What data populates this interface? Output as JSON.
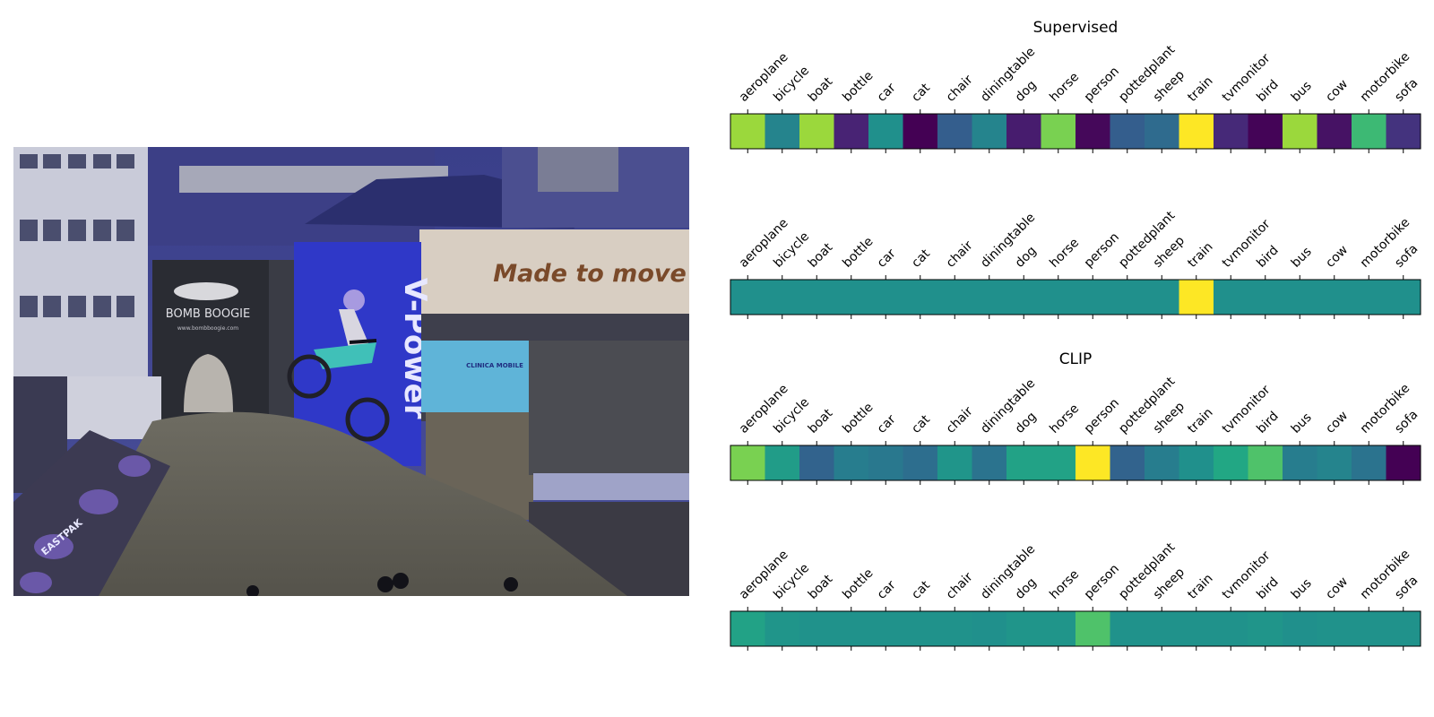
{
  "photo": {
    "description_icon": "motocross-photo",
    "signs": {
      "made_to_move": "Made to move",
      "bomb_boogie": "BOMB BOOGIE",
      "bomb_boogie_url": "www.bombboogie.com",
      "vpower": "V-Power",
      "clinica": "CLINICA MOBILE",
      "eastpak": "EASTPAK"
    }
  },
  "chart_data": [
    {
      "type": "heatmap",
      "title": "Supervised",
      "categories": [
        "aeroplane",
        "bicycle",
        "boat",
        "bottle",
        "car",
        "cat",
        "chair",
        "diningtable",
        "dog",
        "horse",
        "person",
        "pottedplant",
        "sheep",
        "train",
        "tvmonitor",
        "bird",
        "bus",
        "cow",
        "motorbike",
        "sofa"
      ],
      "values": [
        0.85,
        0.45,
        0.85,
        0.1,
        0.5,
        0.0,
        0.3,
        0.45,
        0.08,
        0.8,
        0.02,
        0.3,
        0.35,
        1.0,
        0.12,
        0.01,
        0.85,
        0.05,
        0.68,
        0.15
      ]
    },
    {
      "type": "heatmap",
      "title": "",
      "categories": [
        "aeroplane",
        "bicycle",
        "boat",
        "bottle",
        "car",
        "cat",
        "chair",
        "diningtable",
        "dog",
        "horse",
        "person",
        "pottedplant",
        "sheep",
        "train",
        "tvmonitor",
        "bird",
        "bus",
        "cow",
        "motorbike",
        "sofa"
      ],
      "values": [
        0.5,
        0.5,
        0.5,
        0.5,
        0.5,
        0.5,
        0.5,
        0.5,
        0.5,
        0.5,
        0.5,
        0.5,
        0.5,
        1.0,
        0.5,
        0.5,
        0.5,
        0.5,
        0.5,
        0.5
      ]
    },
    {
      "type": "heatmap",
      "title": "CLIP",
      "categories": [
        "aeroplane",
        "bicycle",
        "boat",
        "bottle",
        "car",
        "cat",
        "chair",
        "diningtable",
        "dog",
        "horse",
        "person",
        "pottedplant",
        "sheep",
        "train",
        "tvmonitor",
        "bird",
        "bus",
        "cow",
        "motorbike",
        "sofa"
      ],
      "values": [
        0.8,
        0.55,
        0.32,
        0.42,
        0.4,
        0.36,
        0.52,
        0.38,
        0.58,
        0.58,
        1.0,
        0.32,
        0.42,
        0.5,
        0.6,
        0.72,
        0.42,
        0.45,
        0.38,
        0.0
      ]
    },
    {
      "type": "heatmap",
      "title": "",
      "categories": [
        "aeroplane",
        "bicycle",
        "boat",
        "bottle",
        "car",
        "cat",
        "chair",
        "diningtable",
        "dog",
        "horse",
        "person",
        "pottedplant",
        "sheep",
        "train",
        "tvmonitor",
        "bird",
        "bus",
        "cow",
        "motorbike",
        "sofa"
      ],
      "values": [
        0.58,
        0.52,
        0.51,
        0.51,
        0.51,
        0.51,
        0.51,
        0.5,
        0.52,
        0.52,
        0.72,
        0.51,
        0.51,
        0.51,
        0.51,
        0.52,
        0.5,
        0.51,
        0.51,
        0.51
      ]
    }
  ]
}
